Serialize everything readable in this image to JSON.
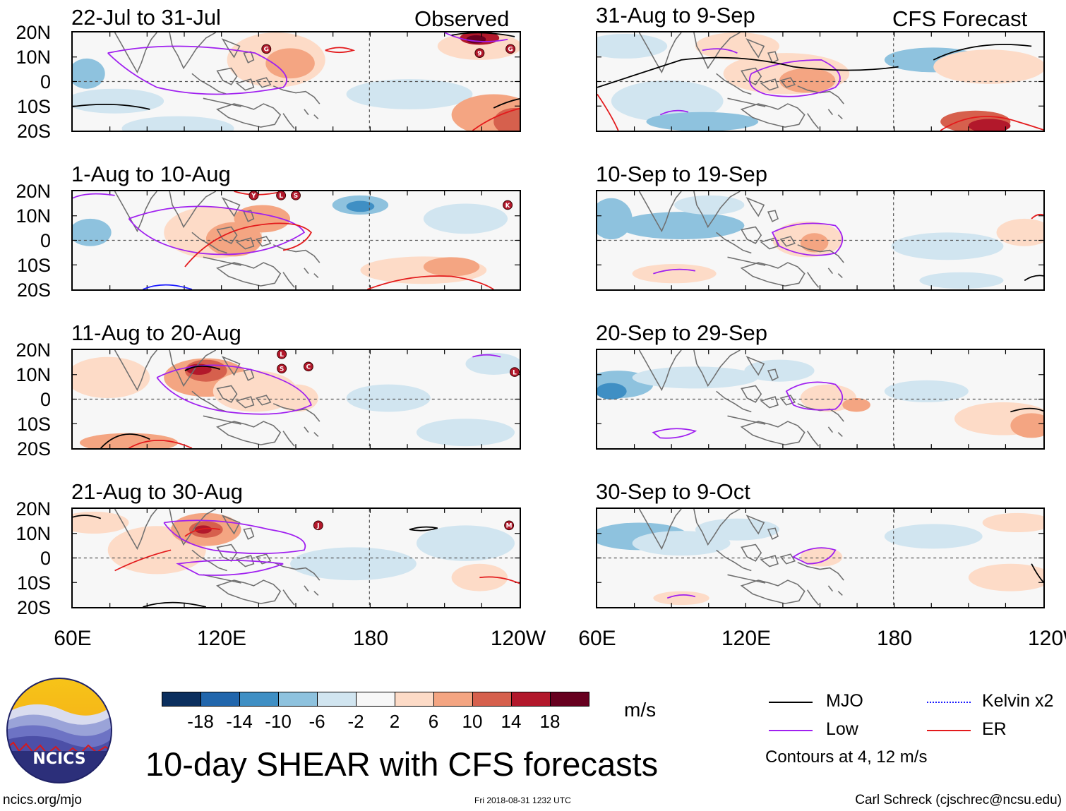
{
  "header": {
    "observed_label": "Observed",
    "forecast_label": "CFS Forecast"
  },
  "axes": {
    "y_labels": [
      "20N",
      "10N",
      "0",
      "10S",
      "20S"
    ],
    "x_labels": [
      "60E",
      "120E",
      "180",
      "120W"
    ]
  },
  "panels": [
    {
      "id": "p1",
      "title": "22-Jul to 31-Jul",
      "column": "observed"
    },
    {
      "id": "p2",
      "title": "1-Aug to 10-Aug",
      "column": "observed"
    },
    {
      "id": "p3",
      "title": "11-Aug to 20-Aug",
      "column": "observed"
    },
    {
      "id": "p4",
      "title": "21-Aug to 30-Aug",
      "column": "observed"
    },
    {
      "id": "p5",
      "title": "31-Aug to 9-Sep",
      "column": "forecast"
    },
    {
      "id": "p6",
      "title": "10-Sep to 19-Sep",
      "column": "forecast"
    },
    {
      "id": "p7",
      "title": "20-Sep to 29-Sep",
      "column": "forecast"
    },
    {
      "id": "p8",
      "title": "30-Sep to 9-Oct",
      "column": "forecast"
    }
  ],
  "colorbar": {
    "labels": [
      "-18",
      "-14",
      "-10",
      "-6",
      "-2",
      "2",
      "6",
      "10",
      "14",
      "18"
    ],
    "colors": [
      "#0b2f5e",
      "#2166ac",
      "#3f8fc4",
      "#8ec2de",
      "#d1e5f0",
      "#f7f7f7",
      "#fddbc7",
      "#f4a582",
      "#d6604d",
      "#b2182b",
      "#67001f"
    ],
    "units": "m/s"
  },
  "legend": {
    "items": [
      {
        "label": "MJO",
        "color": "#000000"
      },
      {
        "label": "Kelvin x2",
        "color": "#1a1aff"
      },
      {
        "label": "Low",
        "color": "#a020f0"
      },
      {
        "label": "ER",
        "color": "#e31a1c"
      }
    ],
    "contours_note": "Contours at 4, 12 m/s"
  },
  "footer": {
    "title": "10-day SHEAR with CFS forecasts",
    "url": "ncics.org/mjo",
    "timestamp": "Fri 2018-08-31 1232 UTC",
    "credit": "Carl Schreck (cjschrec@ncsu.edu)",
    "logo_text": "NCICS"
  },
  "storm_markers": {
    "p1": [
      "G",
      "9",
      "G"
    ],
    "p2": [
      "Y",
      "L",
      "S",
      "K"
    ],
    "p3": [
      "L",
      "S",
      "C",
      "L"
    ],
    "p4": [
      "J",
      "M"
    ]
  }
}
